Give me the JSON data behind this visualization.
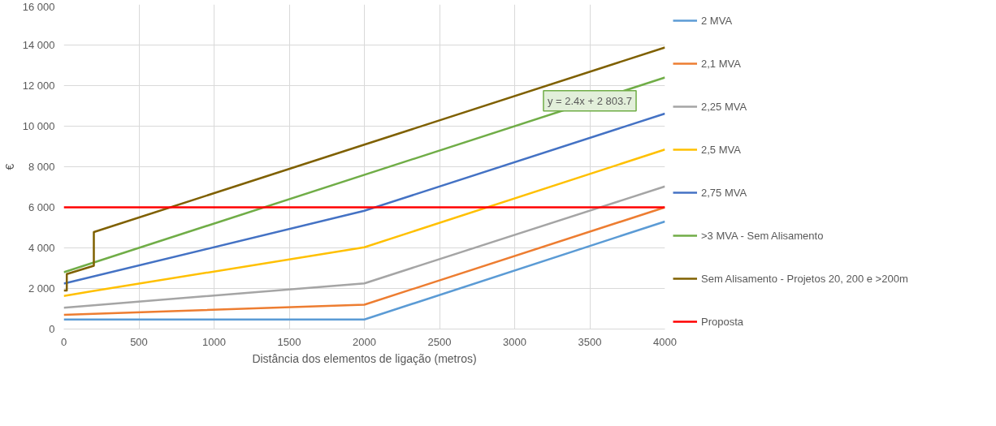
{
  "chart_data": {
    "type": "line",
    "xlabel": "Distância dos elementos de ligação (metros)",
    "ylabel": "€",
    "xlim": [
      0,
      4000
    ],
    "xticks": [
      0,
      500,
      1000,
      1500,
      2000,
      2500,
      3000,
      3500,
      4000
    ],
    "ylim": [
      0,
      16000
    ],
    "yticks": [
      {
        "value": 0,
        "label": "0"
      },
      {
        "value": 2000,
        "label": "2 000"
      },
      {
        "value": 4000,
        "label": "4 000"
      },
      {
        "value": 6000,
        "label": "6 000"
      },
      {
        "value": 8000,
        "label": "8 000"
      },
      {
        "value": 10000,
        "label": "10 000"
      },
      {
        "value": 12000,
        "label": "12 000"
      },
      {
        "value": 14000,
        "label": "14 000"
      },
      {
        "value": 16000,
        "label": "16 000"
      }
    ],
    "grid": true,
    "legend": "right",
    "marker": "none",
    "line_style": "solid",
    "series": [
      {
        "name": "2 MVA",
        "color": "#5b9bd5",
        "x": [
          0,
          2000,
          4000
        ],
        "values": [
          470,
          470,
          5300
        ]
      },
      {
        "name": "2,1 MVA",
        "color": "#ed7d31",
        "x": [
          0,
          2000,
          4000
        ],
        "values": [
          700,
          1200,
          6000
        ]
      },
      {
        "name": "2,25 MVA",
        "color": "#a5a5a5",
        "x": [
          0,
          2000,
          4000
        ],
        "values": [
          1050,
          2250,
          7030
        ]
      },
      {
        "name": "2,5 MVA",
        "color": "#ffc000",
        "x": [
          0,
          200,
          2000,
          4000
        ],
        "values": [
          1630,
          1880,
          4030,
          8850
        ]
      },
      {
        "name": "2,75 MVA",
        "color": "#4472c4",
        "x": [
          0,
          2000,
          4000
        ],
        "values": [
          2240,
          5830,
          10620
        ]
      },
      {
        "name": ">3 MVA - Sem Alisamento",
        "color": "#70ad47",
        "x": [
          0,
          4000
        ],
        "values": [
          2800,
          12400
        ]
      },
      {
        "name": "Sem Alisamento - Projetos 20, 200 e >200m",
        "color": "#7f6000",
        "x": [
          0,
          20,
          20,
          200,
          200,
          4000
        ],
        "values": [
          1900,
          1900,
          2710,
          3120,
          4780,
          13880
        ]
      },
      {
        "name": "Proposta",
        "color": "#ff0000",
        "x": [
          0,
          4000
        ],
        "values": [
          6000,
          6000
        ]
      }
    ],
    "annotations": [
      {
        "text": "y = 2.4x + 2 803.7",
        "x": 3500,
        "y": 11250
      }
    ]
  }
}
